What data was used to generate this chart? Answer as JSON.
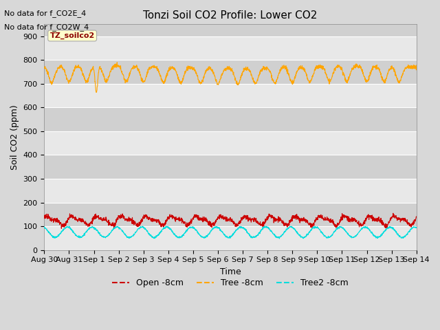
{
  "title": "Tonzi Soil CO2 Profile: Lower CO2",
  "xlabel": "Time",
  "ylabel": "Soil CO2 (ppm)",
  "ylim": [
    0,
    950
  ],
  "yticks": [
    0,
    100,
    200,
    300,
    400,
    500,
    600,
    700,
    800,
    900
  ],
  "note1": "No data for f_CO2E_4",
  "note2": "No data for f_CO2W_4",
  "legend_label": "TZ_soilco2",
  "line_open_color": "#CC0000",
  "line_tree_color": "#FFA500",
  "line_tree2_color": "#00DDDD",
  "line_open_label": "Open -8cm",
  "line_tree_label": "Tree -8cm",
  "line_tree2_label": "Tree2 -8cm",
  "background_color": "#D8D8D8",
  "plot_bg_color_light": "#E8E8E8",
  "plot_bg_color_dark": "#D0D0D0",
  "xtick_labels": [
    "Aug 30",
    "Aug 31",
    "Sep 1",
    "Sep 2",
    "Sep 3",
    "Sep 4",
    "Sep 5",
    "Sep 6",
    "Sep 7",
    "Sep 8",
    "Sep 9",
    "Sep 10",
    "Sep 11",
    "Sep 12",
    "Sep 13",
    "Sep 14"
  ],
  "title_fontsize": 11,
  "label_fontsize": 9,
  "tick_fontsize": 8,
  "note_fontsize": 8,
  "legend_fontsize": 9
}
